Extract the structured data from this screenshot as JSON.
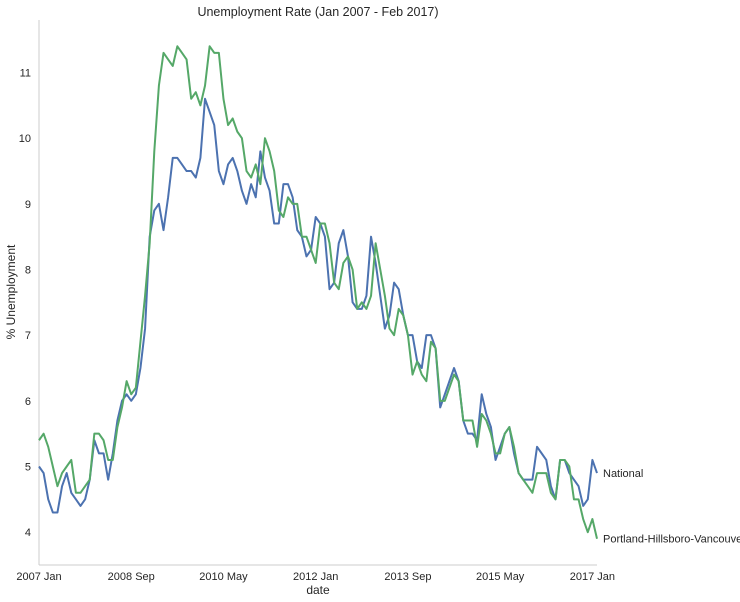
{
  "chart_data": {
    "type": "line",
    "title": "Unemployment Rate (Jan 2007 - Feb 2017)",
    "xlabel": "date",
    "ylabel": "% Unemployment",
    "x_start": "2007-01",
    "x_end": "2017-02",
    "xlim": [
      "2007-01",
      "2017-02"
    ],
    "ylim": [
      3.5,
      11.8
    ],
    "x_ticks": [
      {
        "label": "2007 Jan",
        "date": "2007-01"
      },
      {
        "label": "2008 Sep",
        "date": "2008-09"
      },
      {
        "label": "2010 May",
        "date": "2010-05"
      },
      {
        "label": "2012 Jan",
        "date": "2012-01"
      },
      {
        "label": "2013 Sep",
        "date": "2013-09"
      },
      {
        "label": "2015 May",
        "date": "2015-05"
      },
      {
        "label": "2017 Jan",
        "date": "2017-01"
      }
    ],
    "y_ticks": [
      "4",
      "5",
      "6",
      "7",
      "8",
      "9",
      "10",
      "11"
    ],
    "grid": false,
    "legend": "none",
    "series": [
      {
        "name": "National",
        "color": "#4c72b0",
        "values": [
          5.0,
          4.9,
          4.5,
          4.3,
          4.3,
          4.7,
          4.9,
          4.6,
          4.5,
          4.4,
          4.5,
          4.8,
          5.4,
          5.2,
          5.2,
          4.8,
          5.2,
          5.7,
          6.0,
          6.1,
          6.0,
          6.1,
          6.5,
          7.1,
          8.5,
          8.9,
          9.0,
          8.6,
          9.1,
          9.7,
          9.7,
          9.6,
          9.5,
          9.5,
          9.4,
          9.7,
          10.6,
          10.4,
          10.2,
          9.5,
          9.3,
          9.6,
          9.7,
          9.5,
          9.2,
          9.0,
          9.3,
          9.1,
          9.8,
          9.4,
          9.2,
          8.7,
          8.7,
          9.3,
          9.3,
          9.1,
          8.6,
          8.5,
          8.2,
          8.3,
          8.8,
          8.7,
          8.5,
          7.7,
          7.8,
          8.4,
          8.6,
          8.2,
          7.5,
          7.4,
          7.4,
          7.6,
          8.5,
          8.1,
          7.6,
          7.1,
          7.3,
          7.8,
          7.7,
          7.3,
          7.0,
          7.0,
          6.6,
          6.5,
          7.0,
          7.0,
          6.8,
          5.9,
          6.1,
          6.3,
          6.5,
          6.3,
          5.7,
          5.5,
          5.5,
          5.4,
          6.1,
          5.8,
          5.6,
          5.1,
          5.3,
          5.5,
          5.6,
          5.2,
          4.9,
          4.8,
          4.8,
          4.8,
          5.3,
          5.2,
          5.1,
          4.7,
          4.5,
          5.1,
          5.1,
          4.9,
          4.8,
          4.7,
          4.4,
          4.5,
          5.1,
          4.9
        ]
      },
      {
        "name": "Portland-Hillsboro-Vancouver",
        "color": "#55a868",
        "values": [
          5.4,
          5.5,
          5.3,
          5.0,
          4.7,
          4.9,
          5.0,
          5.1,
          4.6,
          4.6,
          4.7,
          4.8,
          5.5,
          5.5,
          5.4,
          5.1,
          5.1,
          5.6,
          5.9,
          6.3,
          6.1,
          6.2,
          6.9,
          7.6,
          8.4,
          9.8,
          10.8,
          11.3,
          11.2,
          11.1,
          11.4,
          11.3,
          11.2,
          10.6,
          10.7,
          10.5,
          10.8,
          11.4,
          11.3,
          11.3,
          10.6,
          10.2,
          10.3,
          10.1,
          10.0,
          9.5,
          9.4,
          9.6,
          9.3,
          10.0,
          9.8,
          9.5,
          8.9,
          8.8,
          9.1,
          9.0,
          9.0,
          8.5,
          8.5,
          8.3,
          8.1,
          8.7,
          8.7,
          8.4,
          7.8,
          7.7,
          8.1,
          8.2,
          8.0,
          7.4,
          7.5,
          7.4,
          7.6,
          8.4,
          8.0,
          7.6,
          7.1,
          7.0,
          7.4,
          7.3,
          7.0,
          6.4,
          6.6,
          6.4,
          6.3,
          6.9,
          6.8,
          6.0,
          6.0,
          6.2,
          6.4,
          6.3,
          5.7,
          5.7,
          5.7,
          5.3,
          5.8,
          5.7,
          5.5,
          5.2,
          5.2,
          5.5,
          5.6,
          5.3,
          4.9,
          4.8,
          4.7,
          4.6,
          4.9,
          4.9,
          4.9,
          4.6,
          4.5,
          5.1,
          5.1,
          5.0,
          4.5,
          4.5,
          4.2,
          4.0,
          4.2,
          3.9
        ]
      }
    ]
  }
}
